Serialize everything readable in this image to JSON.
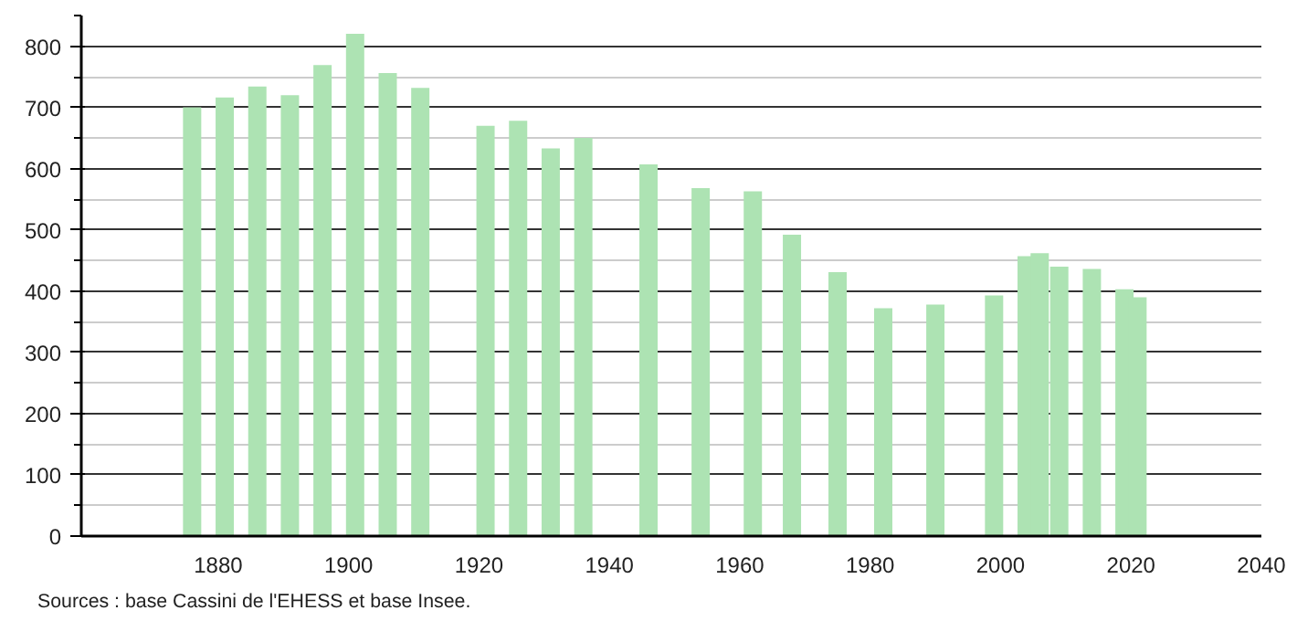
{
  "chart_data": {
    "type": "bar",
    "x": [
      1876,
      1881,
      1886,
      1891,
      1896,
      1901,
      1906,
      1911,
      1921,
      1926,
      1931,
      1936,
      1946,
      1954,
      1962,
      1968,
      1975,
      1982,
      1990,
      1999,
      2004,
      2006,
      2009,
      2014,
      2019,
      2021
    ],
    "values": [
      700,
      716,
      734,
      720,
      769,
      820,
      756,
      732,
      670,
      678,
      633,
      650,
      607,
      568,
      563,
      492,
      431,
      372,
      378,
      393,
      457,
      462,
      440,
      436,
      403,
      390
    ],
    "color": "#ade3b3",
    "xlim": [
      1859,
      2040
    ],
    "xticks": [
      1880,
      1900,
      1920,
      1940,
      1960,
      1980,
      2000,
      2020,
      2040
    ],
    "ylim": [
      0,
      850
    ],
    "yticks": [
      0,
      100,
      200,
      300,
      400,
      500,
      600,
      700,
      800
    ],
    "grid": "y",
    "annotations": [
      "Sources : base Cassini de l'EHESS et base Insee."
    ]
  }
}
